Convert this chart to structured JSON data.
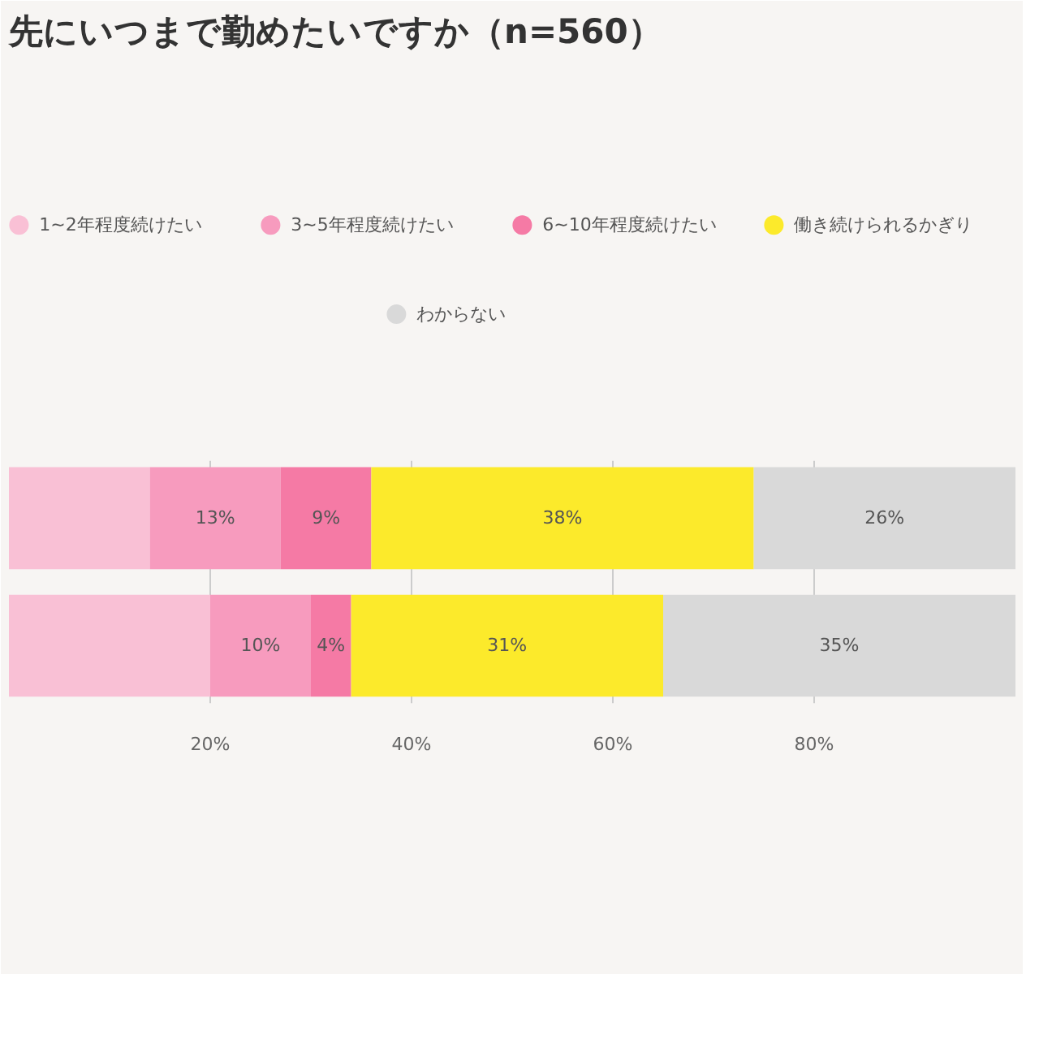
{
  "chart_data": {
    "type": "bar",
    "title": "先にいつまで勤めたいですか（n=560）",
    "orientation": "horizontal",
    "stacked": true,
    "categories": [
      null,
      null
    ],
    "series": [
      {
        "name": "1~2年程度続けたい",
        "color": "#f9c0d5",
        "values": [
          14,
          20
        ],
        "value_labels": [
          null,
          null
        ]
      },
      {
        "name": "3~5年程度続けたい",
        "color": "#f79bbe",
        "values": [
          13,
          10
        ],
        "value_labels": [
          "13%",
          "10%"
        ]
      },
      {
        "name": "6~10年程度続けたい",
        "color": "#f57aa5",
        "values": [
          9,
          4
        ],
        "value_labels": [
          "9%",
          "4%"
        ]
      },
      {
        "name": "働き続けられるかぎり",
        "color": "#fcea2b",
        "values": [
          38,
          31
        ],
        "value_labels": [
          "38%",
          "31%"
        ]
      },
      {
        "name": "わからない",
        "color": "#d9d9d9",
        "values": [
          26,
          35
        ],
        "value_labels": [
          "26%",
          "35%"
        ]
      }
    ],
    "xlim": [
      0,
      100
    ],
    "xticks": [
      {
        "value": 20,
        "label": "20%"
      },
      {
        "value": 40,
        "label": "40%"
      },
      {
        "value": 60,
        "label": "60%"
      },
      {
        "value": 80,
        "label": "80%"
      }
    ],
    "grid": "x",
    "legend": "top"
  }
}
